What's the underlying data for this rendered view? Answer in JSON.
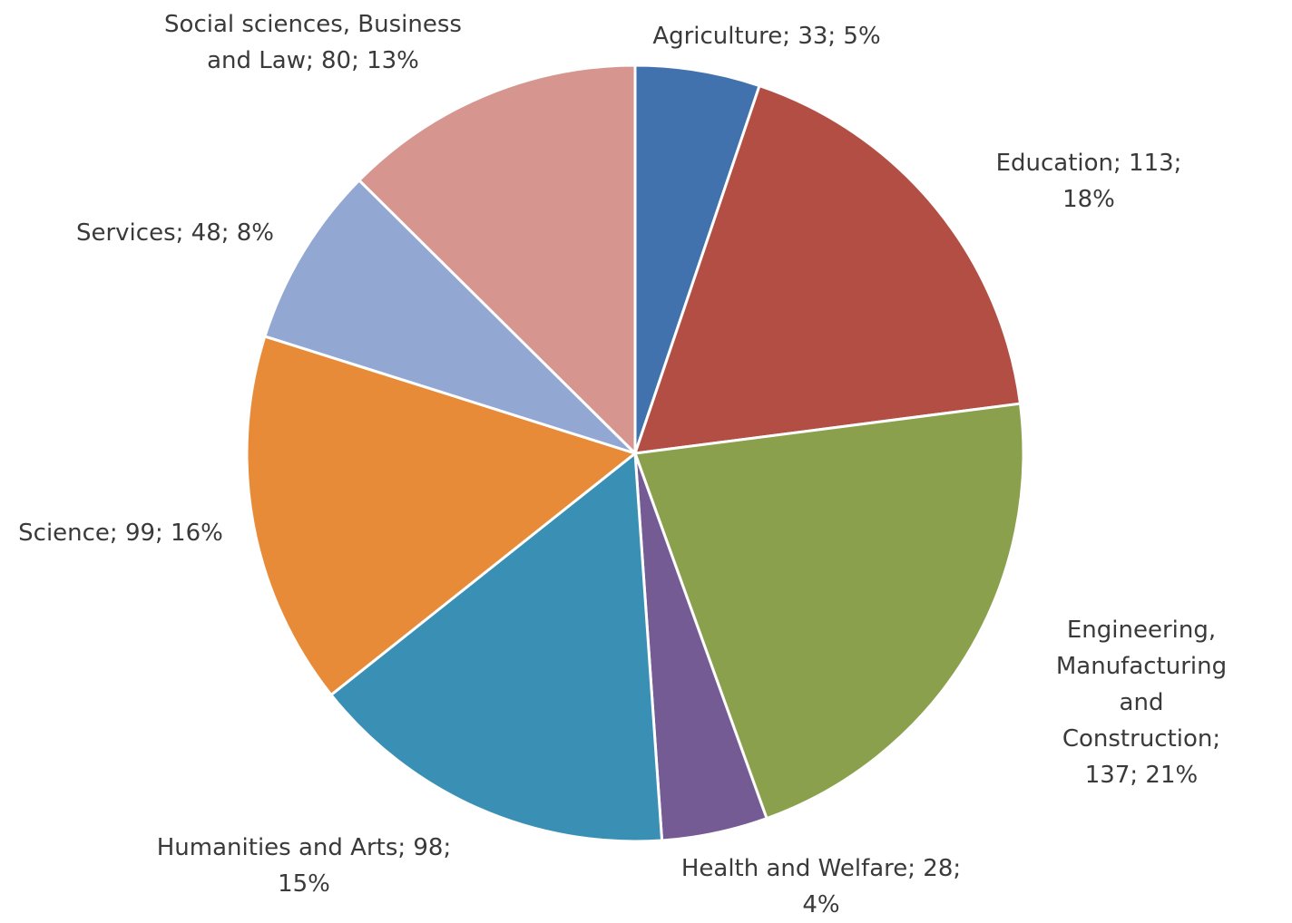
{
  "chart_data": {
    "type": "pie",
    "title": "",
    "start": "12 o'clock",
    "direction": "clockwise",
    "legend": "none",
    "slices": [
      {
        "category": "Agriculture",
        "value": 33,
        "percent": "5%",
        "color": "#4272ad",
        "label": "Agriculture; 33; 5%"
      },
      {
        "category": "Education",
        "value": 113,
        "percent": "18%",
        "color": "#b24e43",
        "label": "Education; 113; 18%"
      },
      {
        "category": "Engineering, Manufacturing and Construction",
        "value": 137,
        "percent": "21%",
        "color": "#8aa04c",
        "label": "Engineering,\nManufacturing and\nConstruction; 137; 21%"
      },
      {
        "category": "Health and Welfare",
        "value": 28,
        "percent": "4%",
        "color": "#755b94",
        "label": "Health and Welfare; 28;\n4%"
      },
      {
        "category": "Humanities and Arts",
        "value": 98,
        "percent": "15%",
        "color": "#3a90b4",
        "label": "Humanities and Arts; 98;\n15%"
      },
      {
        "category": "Science",
        "value": 99,
        "percent": "16%",
        "color": "#e88b38",
        "label": "Science; 99; 16%"
      },
      {
        "category": "Services",
        "value": 48,
        "percent": "8%",
        "color": "#92a8d3",
        "label": "Services; 48; 8%"
      },
      {
        "category": "Social sciences, Business and Law",
        "value": 80,
        "percent": "13%",
        "color": "#d6958f",
        "label": "Social sciences, Business\nand Law; 80; 13%"
      }
    ]
  }
}
